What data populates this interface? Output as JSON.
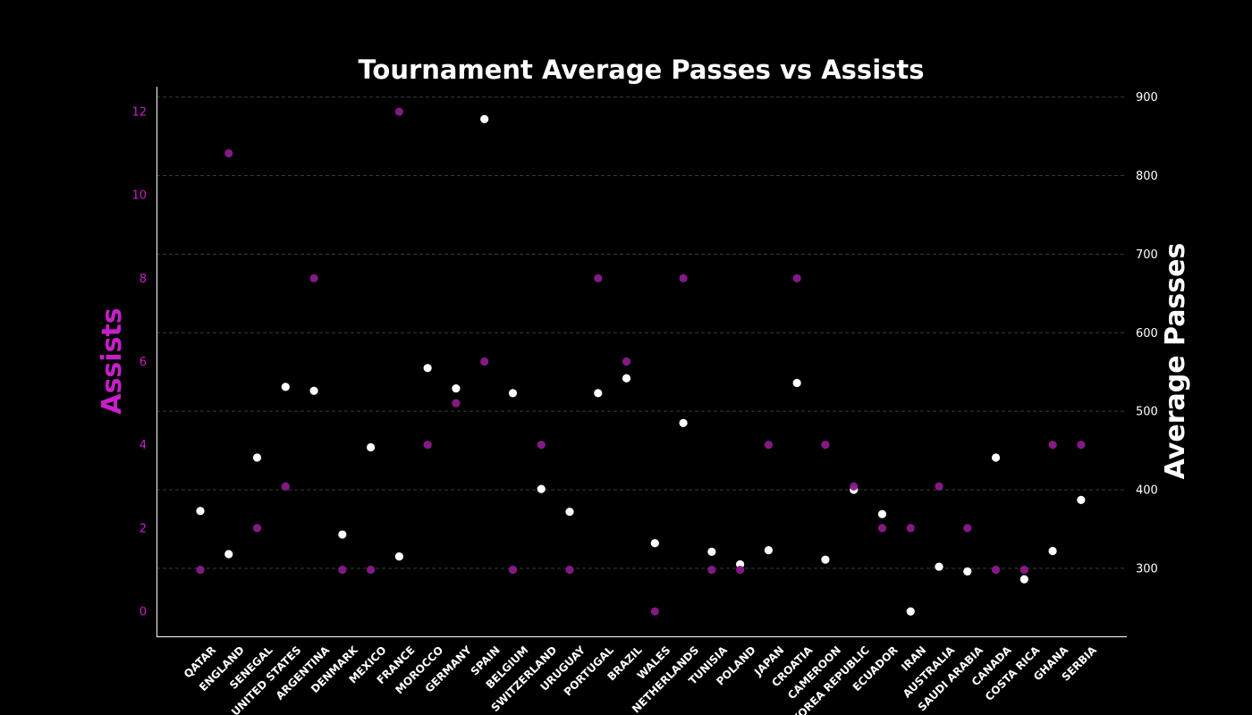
{
  "chart_data": {
    "type": "scatter",
    "title": "Tournament Average Passes vs Assists",
    "categories": [
      "QATAR",
      "ENGLAND",
      "SENEGAL",
      "UNITED STATES",
      "ARGENTINA",
      "DENMARK",
      "MEXICO",
      "FRANCE",
      "MOROCCO",
      "GERMANY",
      "SPAIN",
      "BELGIUM",
      "SWITZERLAND",
      "URUGUAY",
      "PORTUGAL",
      "BRAZIL",
      "WALES",
      "NETHERLANDS",
      "TUNISIA",
      "POLAND",
      "JAPAN",
      "CROATIA",
      "CAMEROON",
      "KOREA REPUBLIC",
      "ECUADOR",
      "IRAN",
      "AUSTRALIA",
      "SAUDI ARABIA",
      "CANADA",
      "COSTA RICA",
      "GHANA",
      "SERBIA"
    ],
    "series": [
      {
        "name": "Assists",
        "axis": "left",
        "color": "#8b1a8b",
        "values": [
          1,
          11,
          2,
          3,
          8,
          1,
          1,
          12,
          4,
          5,
          6,
          1,
          4,
          1,
          8,
          6,
          0,
          8,
          1,
          1,
          4,
          8,
          4,
          3,
          2,
          2,
          3,
          2,
          1,
          1,
          4,
          4
        ]
      },
      {
        "name": "Average Passes",
        "axis": "right",
        "color": "#ffffff",
        "values": [
          373,
          318,
          441,
          531,
          526,
          343,
          454,
          315,
          555,
          529,
          872,
          523,
          401,
          372,
          523,
          542,
          332,
          485,
          321,
          305,
          323,
          536,
          311,
          400,
          369,
          245,
          302,
          296,
          441,
          286,
          322,
          387
        ]
      }
    ],
    "y_left": {
      "label": "Assists",
      "ticks": [
        0,
        2,
        4,
        6,
        8,
        10,
        12
      ],
      "lim": [
        -0.6,
        12.6
      ]
    },
    "y_right": {
      "label": "Average Passes",
      "ticks": [
        300,
        400,
        500,
        600,
        700,
        800,
        900
      ],
      "lim": [
        213.3,
        913.3
      ]
    },
    "grid": "dashed horizontal at right-axis ticks",
    "colors": {
      "background": "#000000",
      "assists_tick": "#c81ec8",
      "assists_point": "#8b1a8b",
      "passes_point": "#ffffff",
      "grid": "#3a3a3a"
    }
  }
}
